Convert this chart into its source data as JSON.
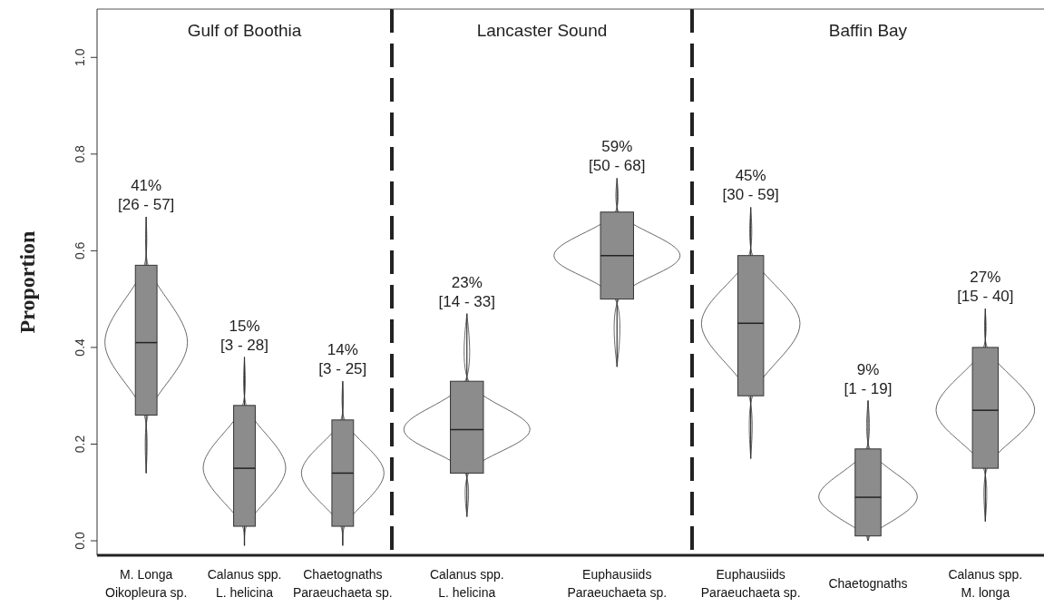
{
  "chart_data": [
    {
      "type": "box",
      "title": "Gulf of Boothia",
      "ylabel": "Proportion",
      "ylim": [
        -0.03,
        1.1
      ],
      "yticks": [
        {
          "value": 0,
          "label": "0.0"
        },
        {
          "value": 0.2,
          "label": "0.2"
        },
        {
          "value": 0.4,
          "label": "0.4"
        },
        {
          "value": 0.6,
          "label": "0.6"
        },
        {
          "value": 0.8,
          "label": "0.8"
        },
        {
          "value": 1,
          "label": "1.0"
        }
      ],
      "categories": [
        "M. Longa\nOikopleura sp.",
        "Calanus spp.\nL. helicina",
        "Chaetognaths\nParaeuchaeta sp."
      ],
      "boxes": [
        {
          "low": 0.14,
          "q1": 0.26,
          "median": 0.41,
          "q3": 0.57,
          "high": 0.67
        },
        {
          "low": -0.01,
          "q1": 0.03,
          "median": 0.15,
          "q3": 0.28,
          "high": 0.38
        },
        {
          "low": -0.01,
          "q1": 0.03,
          "median": 0.14,
          "q3": 0.25,
          "high": 0.33
        }
      ],
      "annotations": [
        "41%\n[26 - 57]",
        "15%\n[3 - 28]",
        "14%\n[3 - 25]"
      ]
    },
    {
      "type": "box",
      "title": "Lancaster Sound",
      "ylim": [
        -0.03,
        1.1
      ],
      "tick_labels": "x",
      "categories": [
        "Calanus spp.\nL. helicina",
        "Euphausiids\nParaeuchaeta sp."
      ],
      "boxes": [
        {
          "low": 0.05,
          "q1": 0.14,
          "median": 0.23,
          "q3": 0.33,
          "high": 0.47
        },
        {
          "low": 0.36,
          "q1": 0.5,
          "median": 0.59,
          "q3": 0.68,
          "high": 0.75
        }
      ],
      "annotations": [
        "23%\n[14 - 33]",
        "59%\n[50 - 68]"
      ]
    },
    {
      "type": "box",
      "title": "Baffin Bay",
      "ylim": [
        -0.03,
        1.1
      ],
      "tick_labels": "x",
      "categories": [
        "Euphausiids\nParaeuchaeta sp.",
        "Chaetognaths",
        "Calanus spp.\nM. longa"
      ],
      "boxes": [
        {
          "low": 0.17,
          "q1": 0.3,
          "median": 0.45,
          "q3": 0.59,
          "high": 0.69
        },
        {
          "low": 0.0,
          "q1": 0.01,
          "median": 0.09,
          "q3": 0.19,
          "high": 0.29
        },
        {
          "low": 0.04,
          "q1": 0.15,
          "median": 0.27,
          "q3": 0.4,
          "high": 0.48
        }
      ],
      "annotations": [
        "45%\n[30 - 59]",
        "9%\n[1 - 19]",
        "27%\n[15 - 40]"
      ]
    }
  ]
}
